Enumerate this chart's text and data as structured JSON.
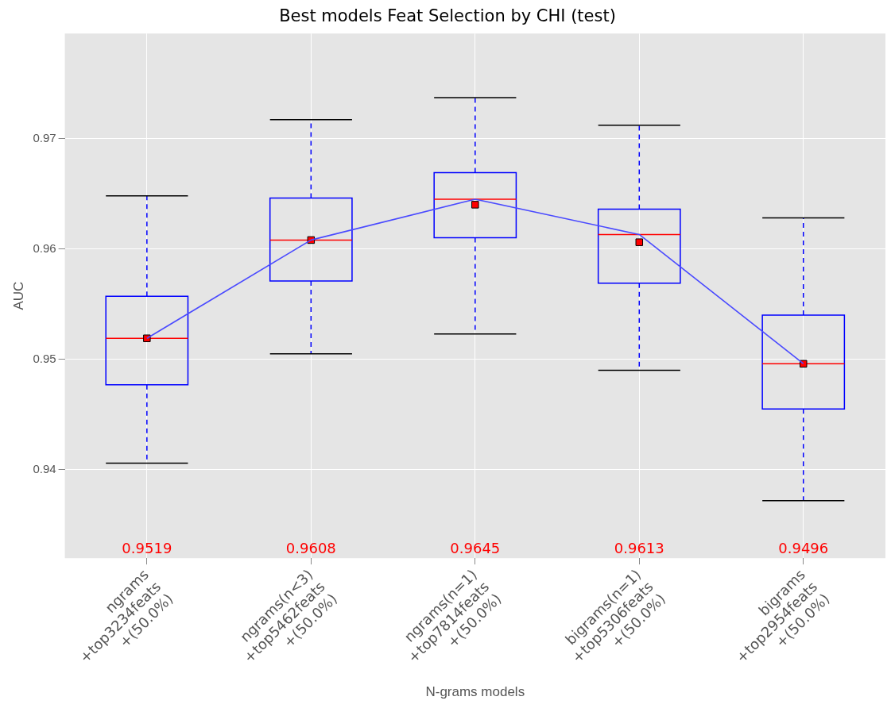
{
  "chart_data": {
    "type": "box",
    "title": "Best models Feat Selection by CHI (test)",
    "xlabel": "N-grams models",
    "ylabel": "AUC",
    "categories": [
      "ngrams\n+top3234feats\n+(50.0%)",
      "ngrams(n<3)\n+top5462feats\n+(50.0%)",
      "ngrams(n=1)\n+top7814feats\n+(50.0%)",
      "bigrams(n=1)\n+top5306feats\n+(50.0%)",
      "bigrams\n+top2954feats\n+(50.0%)"
    ],
    "ylim": [
      0.932,
      0.9795
    ],
    "yticks": [
      0.94,
      0.95,
      0.96,
      0.97
    ],
    "grid": true,
    "series": [
      {
        "type": "box",
        "color": "#0000ff",
        "boxes": [
          {
            "low": 0.9406,
            "q1": 0.9477,
            "median": 0.9519,
            "q3": 0.9557,
            "high": 0.9648,
            "mean": 0.9519
          },
          {
            "low": 0.9505,
            "q1": 0.9571,
            "median": 0.9608,
            "q3": 0.9646,
            "high": 0.9717,
            "mean": 0.9608
          },
          {
            "low": 0.9523,
            "q1": 0.961,
            "median": 0.9645,
            "q3": 0.9669,
            "high": 0.9737,
            "mean": 0.964
          },
          {
            "low": 0.949,
            "q1": 0.9569,
            "median": 0.9613,
            "q3": 0.9636,
            "high": 0.9712,
            "mean": 0.9606
          },
          {
            "low": 0.9372,
            "q1": 0.9455,
            "median": 0.9496,
            "q3": 0.954,
            "high": 0.9628,
            "mean": 0.9496
          }
        ]
      },
      {
        "type": "line",
        "color": "#4a4aff",
        "values": [
          0.9519,
          0.9608,
          0.9645,
          0.9613,
          0.9496
        ],
        "marker": "none"
      }
    ],
    "annotations": [
      "0.9519",
      "0.9608",
      "0.9645",
      "0.9613",
      "0.9496"
    ]
  }
}
